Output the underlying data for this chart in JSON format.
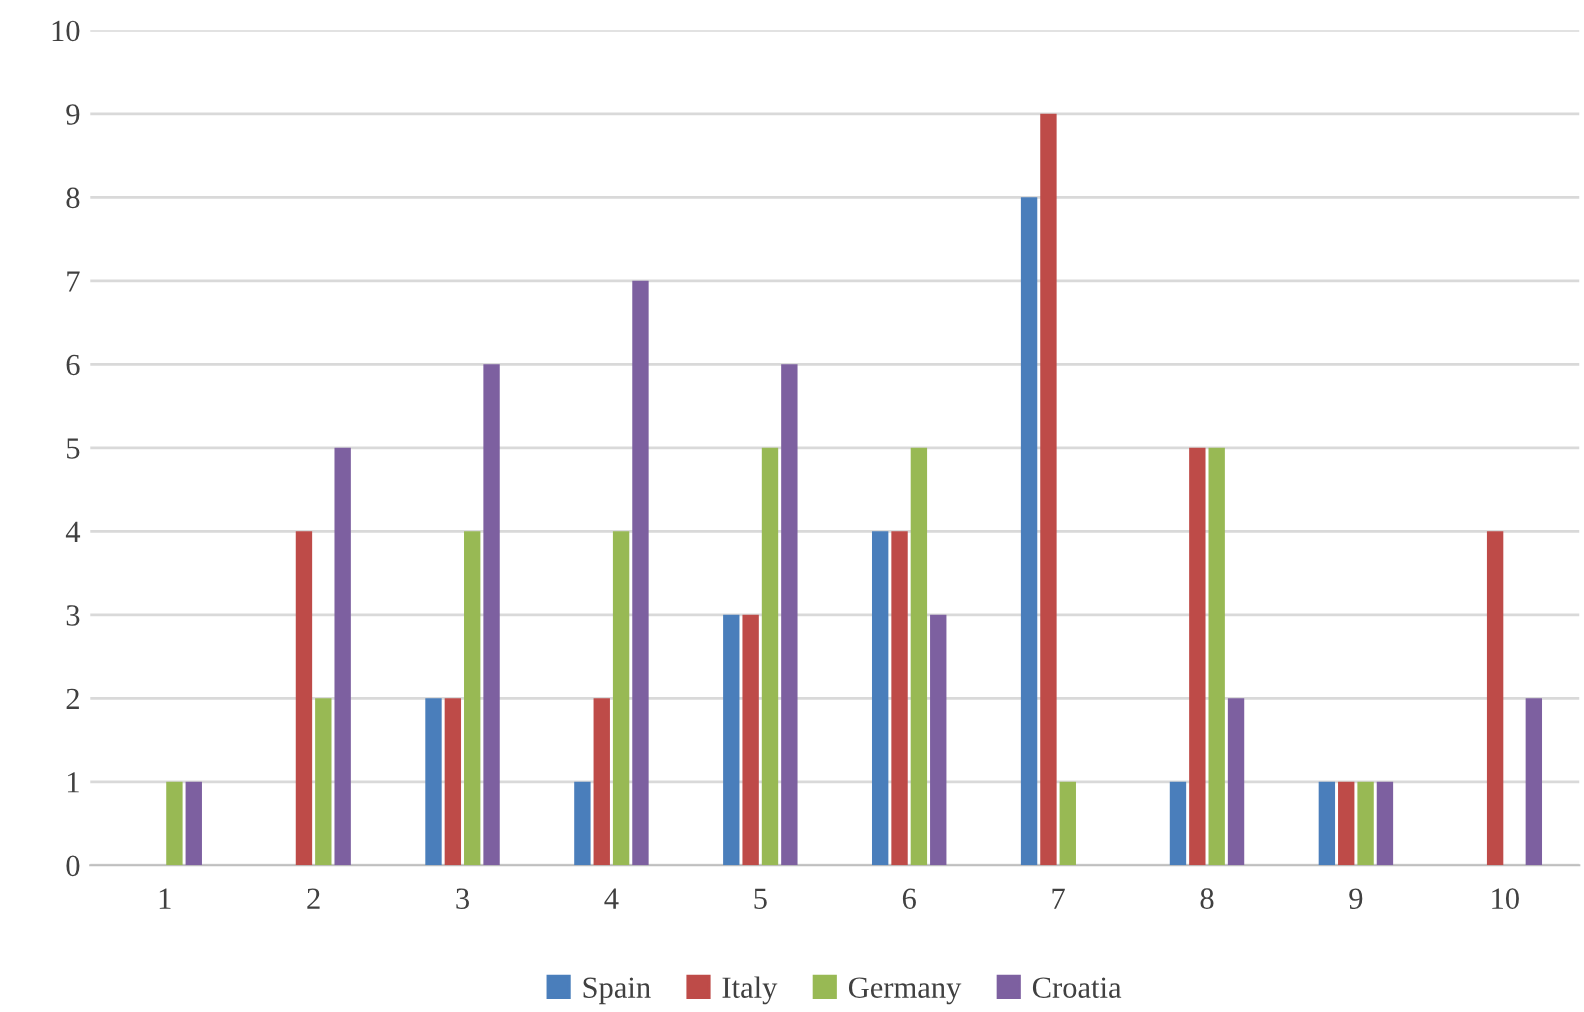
{
  "chart_data": {
    "type": "bar",
    "categories": [
      "1",
      "2",
      "3",
      "4",
      "5",
      "6",
      "7",
      "8",
      "9",
      "10"
    ],
    "series": [
      {
        "name": "Spain",
        "color": "#4a7ebb",
        "values": [
          0,
          0,
          2,
          1,
          3,
          4,
          8,
          1,
          1,
          0
        ]
      },
      {
        "name": "Italy",
        "color": "#be4b48",
        "values": [
          0,
          4,
          2,
          2,
          3,
          4,
          9,
          5,
          1,
          4
        ]
      },
      {
        "name": "Germany",
        "color": "#98b954",
        "values": [
          1,
          2,
          4,
          4,
          5,
          5,
          1,
          5,
          1,
          0
        ]
      },
      {
        "name": "Croatia",
        "color": "#7d60a0",
        "values": [
          1,
          5,
          6,
          7,
          6,
          3,
          0,
          2,
          1,
          2
        ]
      }
    ],
    "ylim": [
      0,
      10
    ],
    "yticks": [
      0,
      1,
      2,
      3,
      4,
      5,
      6,
      7,
      8,
      9,
      10
    ],
    "grid": "y",
    "legend": "bottom"
  }
}
